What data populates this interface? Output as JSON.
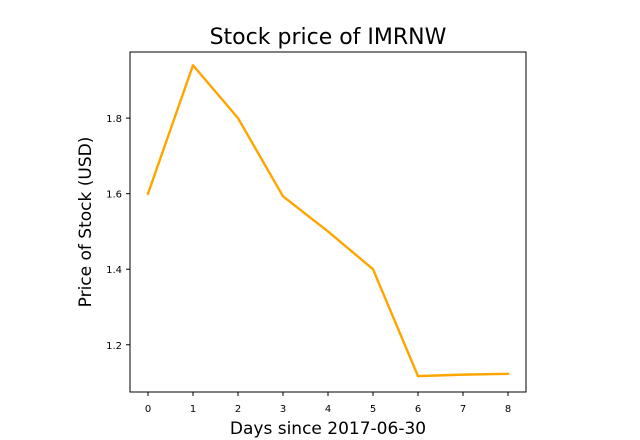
{
  "chart_data": {
    "type": "line",
    "title": "Stock price of IMRNW",
    "xlabel": "Days since 2017-06-30",
    "ylabel": "Price of Stock (USD)",
    "x": [
      0,
      1,
      2,
      3,
      4,
      5,
      6,
      7,
      8
    ],
    "xticks": [
      "0",
      "1",
      "2",
      "3",
      "4",
      "5",
      "6",
      "7",
      "8"
    ],
    "yticks": [
      1.2,
      1.4,
      1.6,
      1.8
    ],
    "ytick_labels": [
      "1.2",
      "1.4",
      "1.6",
      "1.8"
    ],
    "xlim": [
      -0.4,
      8.4
    ],
    "ylim": [
      1.075,
      1.975
    ],
    "grid": false,
    "series": [
      {
        "values": [
          1.6,
          1.94,
          1.8,
          1.593,
          1.5,
          1.4,
          1.117,
          1.121,
          1.123
        ],
        "color": "#FFA500"
      }
    ]
  }
}
